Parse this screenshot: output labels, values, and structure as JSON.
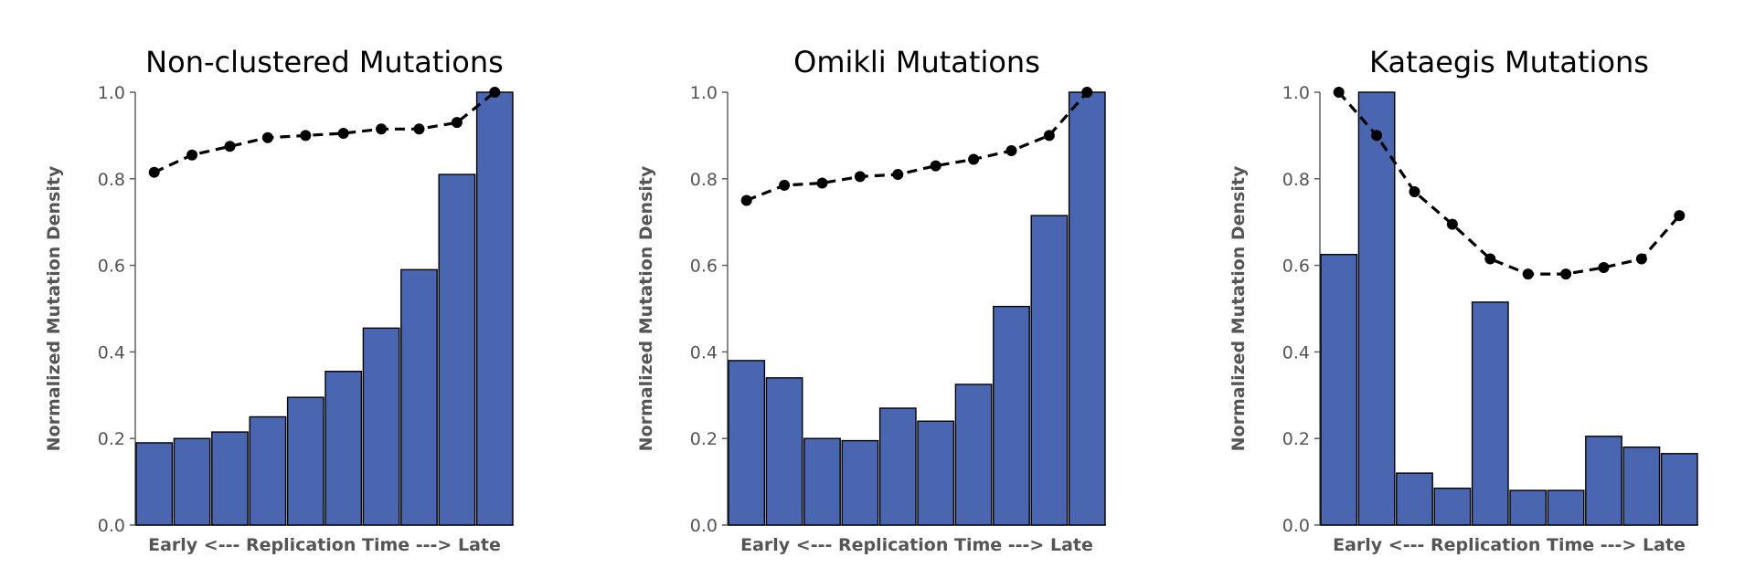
{
  "colors": {
    "bar": "#4a66b0",
    "trend": "#000000",
    "axis": "#555555"
  },
  "chart_data": [
    {
      "type": "bar",
      "title": "Non-clustered Mutations",
      "xlabel": "Early <--- Replication Time ---> Late",
      "ylabel": "Normalized Mutation Density",
      "ylim": [
        0,
        1.0
      ],
      "yticks": [
        "0.0",
        "0.2",
        "0.4",
        "0.6",
        "0.8",
        "1.0"
      ],
      "grid": false,
      "values": [
        0.19,
        0.2,
        0.215,
        0.25,
        0.295,
        0.355,
        0.455,
        0.59,
        0.81,
        1.0
      ],
      "trend": [
        0.815,
        0.855,
        0.875,
        0.895,
        0.9,
        0.905,
        0.915,
        0.915,
        0.93,
        1.0
      ]
    },
    {
      "type": "bar",
      "title": "Omikli Mutations",
      "xlabel": "Early <--- Replication Time ---> Late",
      "ylabel": "Normalized Mutation Density",
      "ylim": [
        0,
        1.0
      ],
      "yticks": [
        "0.0",
        "0.2",
        "0.4",
        "0.6",
        "0.8",
        "1.0"
      ],
      "grid": false,
      "values": [
        0.38,
        0.34,
        0.2,
        0.195,
        0.27,
        0.24,
        0.325,
        0.505,
        0.715,
        1.0
      ],
      "trend": [
        0.75,
        0.785,
        0.79,
        0.805,
        0.81,
        0.83,
        0.845,
        0.865,
        0.9,
        1.0
      ]
    },
    {
      "type": "bar",
      "title": "Kataegis Mutations",
      "xlabel": "Early <--- Replication Time ---> Late",
      "ylabel": "Normalized Mutation Density",
      "ylim": [
        0,
        1.0
      ],
      "yticks": [
        "0.0",
        "0.2",
        "0.4",
        "0.6",
        "0.8",
        "1.0"
      ],
      "grid": false,
      "values": [
        0.625,
        1.0,
        0.12,
        0.085,
        0.515,
        0.08,
        0.08,
        0.205,
        0.18,
        0.165
      ],
      "trend": [
        1.0,
        0.9,
        0.77,
        0.695,
        0.615,
        0.58,
        0.58,
        0.595,
        0.615,
        0.715
      ]
    }
  ]
}
